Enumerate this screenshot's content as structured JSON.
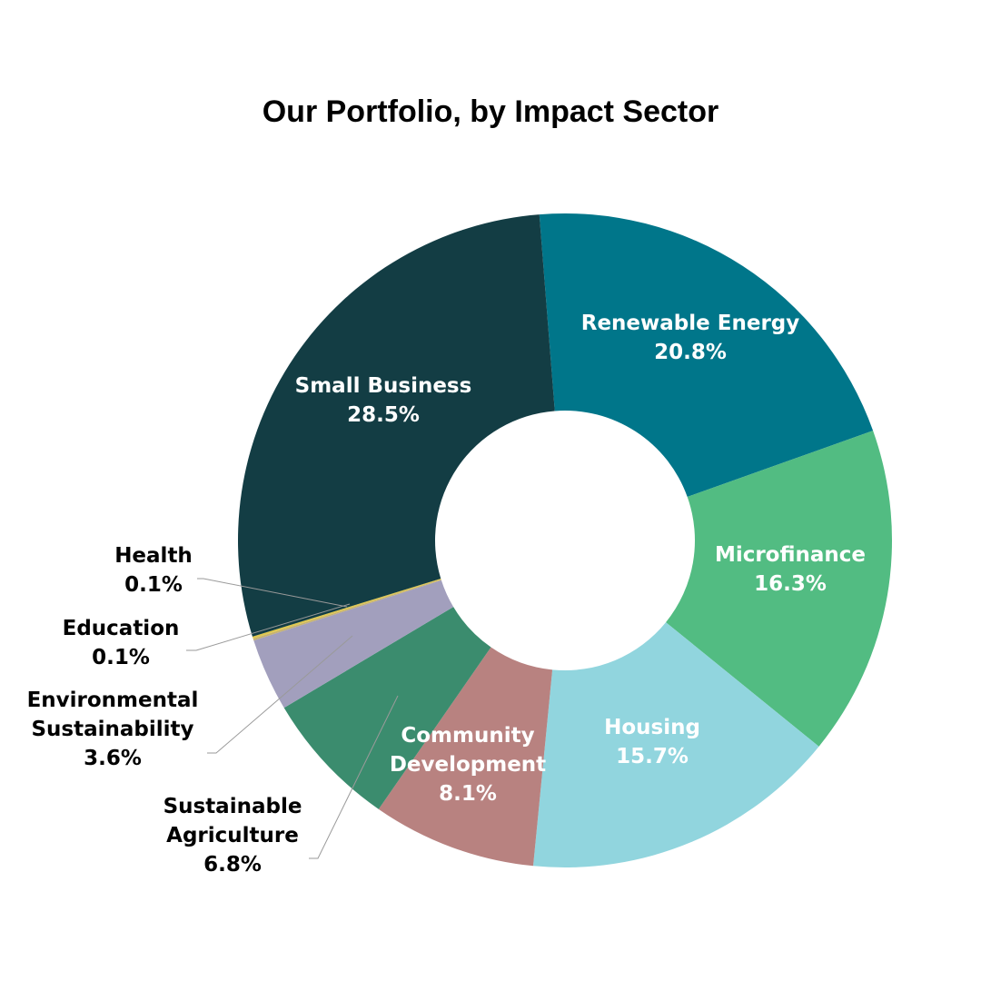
{
  "chart_data": {
    "type": "pie",
    "variant": "donut",
    "title": "Our Portfolio, by Impact Sector",
    "slices": [
      {
        "label": "Renewable Energy",
        "value": 20.8,
        "value_label": "20.8%",
        "color": "#00768a",
        "label_color": "#ffffff",
        "lines": [
          "Renewable Energy"
        ]
      },
      {
        "label": "Microfinance",
        "value": 16.3,
        "value_label": "16.3%",
        "color": "#52bc82",
        "label_color": "#ffffff",
        "lines": [
          "Microfinance"
        ]
      },
      {
        "label": "Housing",
        "value": 15.7,
        "value_label": "15.7%",
        "color": "#91d5de",
        "label_color": "#ffffff",
        "lines": [
          "Housing"
        ]
      },
      {
        "label": "Community Development",
        "value": 8.1,
        "value_label": "8.1%",
        "color": "#b88280",
        "label_color": "#ffffff",
        "lines": [
          "Community",
          "Development"
        ]
      },
      {
        "label": "Sustainable Agriculture",
        "value": 6.8,
        "value_label": "6.8%",
        "color": "#3b8c6e",
        "label_color": "#000000",
        "lines": [
          "Sustainable",
          "Agriculture"
        ]
      },
      {
        "label": "Environmental Sustainability",
        "value": 3.6,
        "value_label": "3.6%",
        "color": "#a29fbd",
        "label_color": "#000000",
        "lines": [
          "Environmental",
          "Sustainability"
        ]
      },
      {
        "label": "Education",
        "value": 0.1,
        "value_label": "0.1%",
        "color": "#c6b270",
        "label_color": "#000000",
        "lines": [
          "Education"
        ]
      },
      {
        "label": "Health",
        "value": 0.1,
        "value_label": "0.1%",
        "color": "#e0c84c",
        "label_color": "#000000",
        "lines": [
          "Health"
        ]
      },
      {
        "label": "Small Business",
        "value": 28.5,
        "value_label": "28.5%",
        "color": "#133d44",
        "label_color": "#ffffff",
        "lines": [
          "Small Business"
        ]
      }
    ],
    "legend": "none",
    "label_placement": "inside for large slices, outside with leader lines for small slices"
  }
}
